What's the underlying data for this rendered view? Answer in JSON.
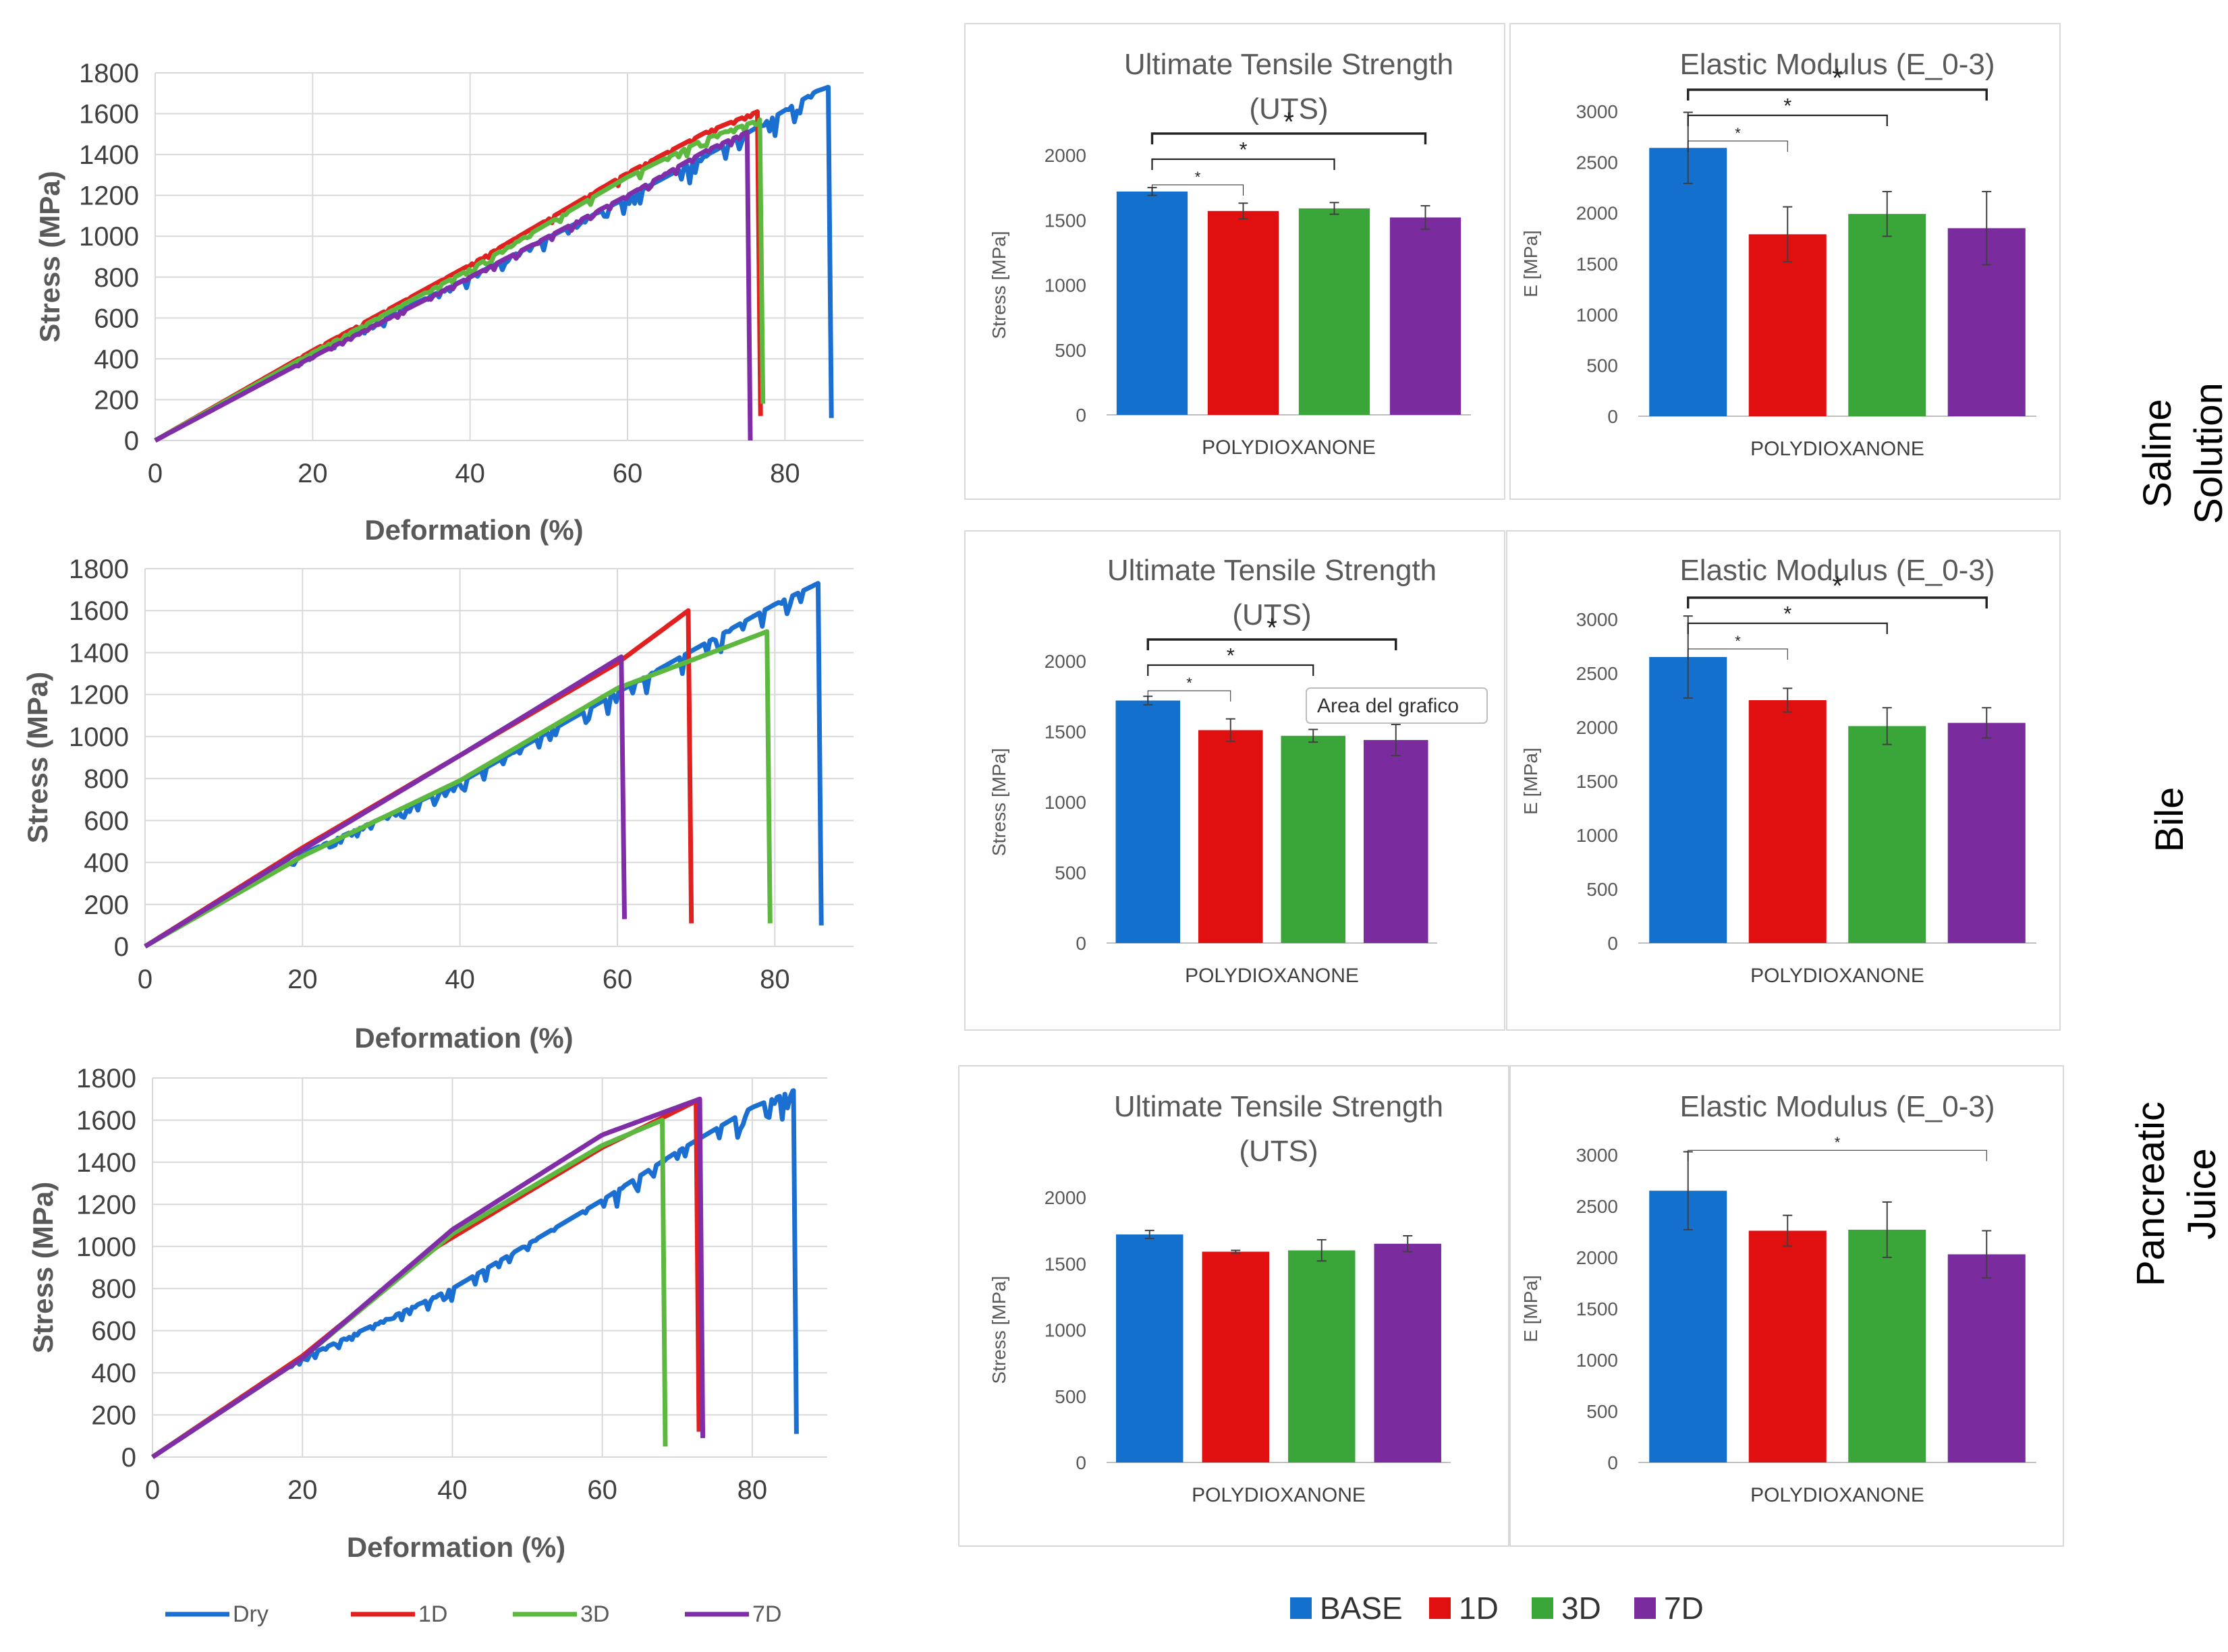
{
  "figure": {
    "conditions": [
      "Saline\nSolution",
      "Bile",
      "Pancreatic\nJuice"
    ],
    "line_legend": [
      {
        "name": "Dry",
        "color": "#1a6fd1"
      },
      {
        "name": "1D",
        "color": "#e0211f"
      },
      {
        "name": "3D",
        "color": "#5cb83e"
      },
      {
        "name": "7D",
        "color": "#7f2ea8"
      }
    ],
    "bar_legend": [
      {
        "name": "BASE",
        "color": "#1470cd"
      },
      {
        "name": "1D",
        "color": "#e01010"
      },
      {
        "name": "3D",
        "color": "#3aa63a"
      },
      {
        "name": "7D",
        "color": "#7a2b9e"
      }
    ],
    "tooltip": "Area del grafico"
  },
  "chart_data": [
    {
      "type": "line",
      "condition": "Saline Solution",
      "xlabel": "Deformation (%)",
      "ylabel": "Stress (MPa)",
      "xlim": [
        0,
        90
      ],
      "ylim": [
        0,
        1800
      ],
      "xticks": [
        "0",
        "20",
        "40",
        "60",
        "80"
      ],
      "yticks": [
        "0",
        "200",
        "400",
        "600",
        "800",
        "1000",
        "1200",
        "1400",
        "1600",
        "1800"
      ],
      "series": [
        {
          "name": "Dry",
          "break_x": 85.5,
          "peak": 1730,
          "drop_to": 110,
          "points": [
            [
              0,
              0
            ],
            [
              20,
              430
            ],
            [
              40,
              800
            ],
            [
              60,
              1190
            ],
            [
              75,
              1500
            ],
            [
              84,
              1710
            ],
            [
              85.5,
              1730
            ]
          ]
        },
        {
          "name": "1D",
          "break_x": 76.5,
          "peak": 1610,
          "drop_to": 120,
          "points": [
            [
              0,
              0
            ],
            [
              20,
              440
            ],
            [
              40,
              860
            ],
            [
              60,
              1310
            ],
            [
              70,
              1510
            ],
            [
              76.5,
              1610
            ]
          ]
        },
        {
          "name": "3D",
          "break_x": 76.8,
          "peak": 1570,
          "drop_to": 180,
          "points": [
            [
              0,
              0
            ],
            [
              20,
              430
            ],
            [
              40,
              840
            ],
            [
              60,
              1290
            ],
            [
              70,
              1480
            ],
            [
              76.8,
              1570
            ]
          ]
        },
        {
          "name": "7D",
          "break_x": 75.2,
          "peak": 1510,
          "drop_to": 0,
          "points": [
            [
              0,
              0
            ],
            [
              20,
              410
            ],
            [
              40,
              800
            ],
            [
              60,
              1200
            ],
            [
              70,
              1420
            ],
            [
              75.2,
              1510
            ]
          ]
        }
      ]
    },
    {
      "type": "line",
      "condition": "Bile",
      "xlabel": "Deformation (%)",
      "ylabel": "Stress (MPa)",
      "xlim": [
        0,
        90
      ],
      "ylim": [
        0,
        1800
      ],
      "xticks": [
        "0",
        "20",
        "40",
        "60",
        "80"
      ],
      "yticks": [
        "0",
        "200",
        "400",
        "600",
        "800",
        "1000",
        "1200",
        "1400",
        "1600",
        "1800"
      ],
      "series": [
        {
          "name": "Dry",
          "break_x": 85.5,
          "peak": 1730,
          "drop_to": 100,
          "points": [
            [
              0,
              0
            ],
            [
              20,
              440
            ],
            [
              40,
              780
            ],
            [
              60,
              1210
            ],
            [
              70,
              1420
            ],
            [
              80,
              1630
            ],
            [
              85.5,
              1730
            ]
          ]
        },
        {
          "name": "1D",
          "break_x": 69,
          "peak": 1600,
          "drop_to": 110,
          "points": [
            [
              0,
              0
            ],
            [
              20,
              470
            ],
            [
              40,
              910
            ],
            [
              60,
              1350
            ],
            [
              69,
              1600
            ]
          ]
        },
        {
          "name": "3D",
          "break_x": 79,
          "peak": 1500,
          "drop_to": 110,
          "points": [
            [
              0,
              0
            ],
            [
              20,
              430
            ],
            [
              40,
              790
            ],
            [
              60,
              1230
            ],
            [
              79,
              1500
            ]
          ]
        },
        {
          "name": "7D",
          "break_x": 60.5,
          "peak": 1380,
          "drop_to": 130,
          "points": [
            [
              0,
              0
            ],
            [
              20,
              460
            ],
            [
              40,
              910
            ],
            [
              60.5,
              1380
            ]
          ]
        }
      ]
    },
    {
      "type": "line",
      "condition": "Pancreatic Juice",
      "xlabel": "Deformation (%)",
      "ylabel": "Stress (MPa)",
      "xlim": [
        0,
        90
      ],
      "ylim": [
        0,
        1800
      ],
      "xticks": [
        "0",
        "20",
        "40",
        "60",
        "80"
      ],
      "yticks": [
        "0",
        "200",
        "400",
        "600",
        "800",
        "1000",
        "1200",
        "1400",
        "1600",
        "1800"
      ],
      "series": [
        {
          "name": "Dry",
          "break_x": 85.5,
          "peak": 1740,
          "drop_to": 110,
          "points": [
            [
              0,
              0
            ],
            [
              20,
              470
            ],
            [
              40,
              800
            ],
            [
              60,
              1220
            ],
            [
              70,
              1450
            ],
            [
              80,
              1660
            ],
            [
              85.5,
              1740
            ]
          ]
        },
        {
          "name": "1D",
          "break_x": 72.5,
          "peak": 1690,
          "drop_to": 120,
          "points": [
            [
              0,
              0
            ],
            [
              20,
              480
            ],
            [
              38,
              1000
            ],
            [
              60,
              1470
            ],
            [
              72.5,
              1690
            ]
          ]
        },
        {
          "name": "3D",
          "break_x": 68,
          "peak": 1600,
          "drop_to": 50,
          "points": [
            [
              0,
              0
            ],
            [
              20,
              470
            ],
            [
              40,
              1060
            ],
            [
              60,
              1480
            ],
            [
              68,
              1600
            ]
          ]
        },
        {
          "name": "7D",
          "break_x": 73,
          "peak": 1700,
          "drop_to": 90,
          "points": [
            [
              0,
              0
            ],
            [
              20,
              470
            ],
            [
              40,
              1080
            ],
            [
              60,
              1530
            ],
            [
              73,
              1700
            ]
          ]
        }
      ]
    },
    {
      "type": "bar",
      "condition": "Saline Solution",
      "title": "Ultimate Tensile Strength\n(UTS)",
      "ylabel": "Stress [MPa]",
      "xlabel": "POLYDIOXANONE",
      "ylim": [
        0,
        2000
      ],
      "yticks": [
        "0",
        "500",
        "1000",
        "1500",
        "2000"
      ],
      "categories": [
        "BASE",
        "1D",
        "3D",
        "7D"
      ],
      "values": [
        1720,
        1570,
        1590,
        1520
      ],
      "errors": [
        30,
        60,
        45,
        90
      ],
      "significance": [
        {
          "to": 1,
          "label": "*"
        },
        {
          "to": 2,
          "label": "*"
        },
        {
          "to": 3,
          "label": "*"
        }
      ]
    },
    {
      "type": "bar",
      "condition": "Saline Solution",
      "title": "Elastic Modulus (E_0-3)",
      "ylabel": "E [MPa]",
      "xlabel": "POLYDIOXANONE",
      "ylim": [
        0,
        3000
      ],
      "yticks": [
        "0",
        "500",
        "1000",
        "1500",
        "2000",
        "2500",
        "3000"
      ],
      "categories": [
        "BASE",
        "1D",
        "3D",
        "7D"
      ],
      "values": [
        2640,
        1790,
        1990,
        1850
      ],
      "errors": [
        350,
        270,
        220,
        360
      ],
      "significance": [
        {
          "to": 1,
          "label": "*"
        },
        {
          "to": 2,
          "label": "*"
        },
        {
          "to": 3,
          "label": "*"
        }
      ]
    },
    {
      "type": "bar",
      "condition": "Bile",
      "title": "Ultimate Tensile Strength\n(UTS)",
      "ylabel": "Stress [MPa]",
      "xlabel": "POLYDIOXANONE",
      "ylim": [
        0,
        2000
      ],
      "yticks": [
        "0",
        "500",
        "1000",
        "1500",
        "2000"
      ],
      "categories": [
        "BASE",
        "1D",
        "3D",
        "7D"
      ],
      "values": [
        1720,
        1510,
        1470,
        1440
      ],
      "errors": [
        30,
        80,
        45,
        110
      ],
      "significance": [
        {
          "to": 1,
          "label": "*"
        },
        {
          "to": 2,
          "label": "*"
        },
        {
          "to": 3,
          "label": "*"
        }
      ]
    },
    {
      "type": "bar",
      "condition": "Bile",
      "title": "Elastic Modulus (E_0-3)",
      "ylabel": "E [MPa]",
      "xlabel": "POLYDIOXANONE",
      "ylim": [
        0,
        3000
      ],
      "yticks": [
        "0",
        "500",
        "1000",
        "1500",
        "2000",
        "2500",
        "3000"
      ],
      "categories": [
        "BASE",
        "1D",
        "3D",
        "7D"
      ],
      "values": [
        2650,
        2250,
        2010,
        2040
      ],
      "errors": [
        380,
        110,
        170,
        140
      ],
      "significance": [
        {
          "to": 1,
          "label": "*"
        },
        {
          "to": 2,
          "label": "*"
        },
        {
          "to": 3,
          "label": "*"
        }
      ]
    },
    {
      "type": "bar",
      "condition": "Pancreatic Juice",
      "title": "Ultimate Tensile Strength\n(UTS)",
      "ylabel": "Stress [MPa]",
      "xlabel": "POLYDIOXANONE",
      "ylim": [
        0,
        2000
      ],
      "yticks": [
        "0",
        "500",
        "1000",
        "1500",
        "2000"
      ],
      "categories": [
        "BASE",
        "1D",
        "3D",
        "7D"
      ],
      "values": [
        1720,
        1590,
        1600,
        1650
      ],
      "errors": [
        30,
        10,
        80,
        60
      ],
      "significance": []
    },
    {
      "type": "bar",
      "condition": "Pancreatic Juice",
      "title": "Elastic Modulus (E_0-3)",
      "ylabel": "E [MPa]",
      "xlabel": "POLYDIOXANONE",
      "ylim": [
        0,
        3000
      ],
      "yticks": [
        "0",
        "500",
        "1000",
        "1500",
        "2000",
        "2500",
        "3000"
      ],
      "categories": [
        "BASE",
        "1D",
        "3D",
        "7D"
      ],
      "values": [
        2650,
        2260,
        2270,
        2030
      ],
      "errors": [
        380,
        150,
        270,
        230
      ],
      "significance": [
        {
          "to": 3,
          "label": "*"
        }
      ]
    }
  ]
}
